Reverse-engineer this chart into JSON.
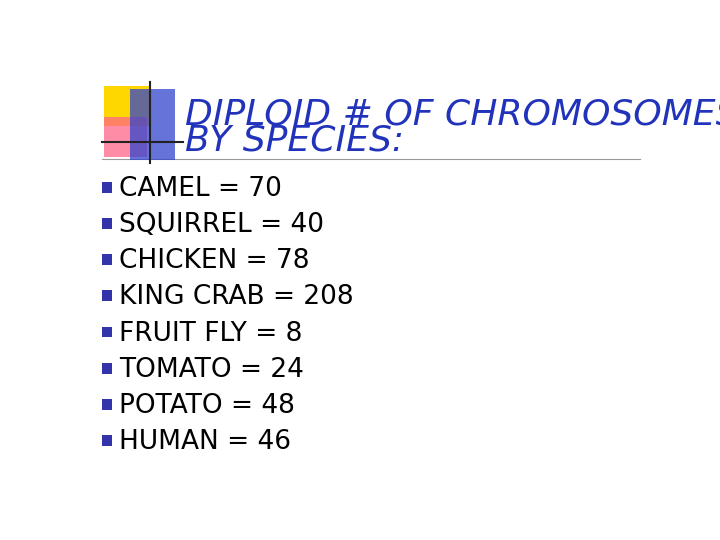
{
  "title_line1": "DIPLOID # OF CHROMOSOMES",
  "title_line2": "BY SPECIES:",
  "title_color": "#2233BB",
  "title_fontsize": 26,
  "bullet_items": [
    "CAMEL = 70",
    "SQUIRREL = 40",
    "CHICKEN = 78",
    "KING CRAB = 208",
    "FRUIT FLY = 8",
    "TOMATO = 24",
    "POTATO = 48",
    "HUMAN = 46"
  ],
  "bullet_color": "#000000",
  "bullet_fontsize": 19,
  "bullet_marker_color": "#3333AA",
  "background_color": "#ffffff",
  "divider_color": "#999999",
  "logo_yellow": "#FFD700",
  "logo_pink": "#FF6688",
  "logo_blue": "#3344CC"
}
